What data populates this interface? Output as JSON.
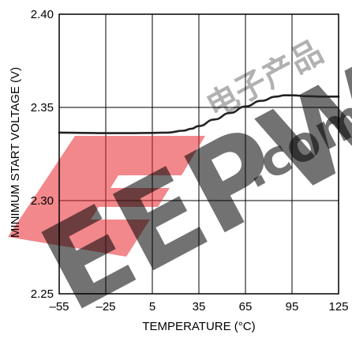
{
  "chart_data": {
    "type": "line",
    "title": "",
    "xlabel": "TEMPERATURE (°C)",
    "ylabel": "MINIMUM START VOLTAGE (V)",
    "xlim": [
      -55,
      125
    ],
    "ylim": [
      2.25,
      2.4
    ],
    "x_ticks": [
      -55,
      -25,
      5,
      35,
      65,
      95,
      125
    ],
    "x_tick_labels": [
      "–55",
      "–25",
      "5",
      "35",
      "65",
      "95",
      "125"
    ],
    "y_ticks": [
      2.25,
      2.3,
      2.35,
      2.4
    ],
    "y_tick_labels": [
      "2.25",
      "2.30",
      "2.35",
      "2.40"
    ],
    "grid": true,
    "legend": "none",
    "series": [
      {
        "color": "#222222",
        "x": [
          -55,
          -40,
          -25,
          -10,
          5,
          15,
          25,
          30,
          35,
          45,
          55,
          65,
          75,
          85,
          90,
          95,
          105,
          115,
          125
        ],
        "y": [
          2.3365,
          2.3363,
          2.3362,
          2.3362,
          2.3363,
          2.3365,
          2.3375,
          2.3385,
          2.34,
          2.3435,
          2.347,
          2.3505,
          2.3535,
          2.3558,
          2.3565,
          2.3565,
          2.356,
          2.3558,
          2.3558
        ]
      }
    ]
  },
  "watermark": {
    "main_text": "EEPW",
    "suffix_text": ".com",
    "chinese_text": "电子产品",
    "color": "#e8262d"
  }
}
